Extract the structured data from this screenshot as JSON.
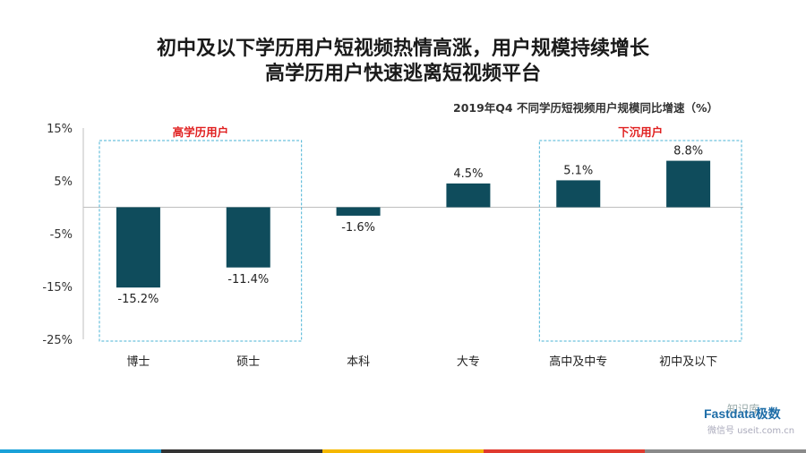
{
  "header": {
    "title_line1": "初中及以下学历用户短视频热情高涨，用户规模持续增长",
    "title_line2": "高学历用户快速逃离短视频平台",
    "subtitle": "2019年Q4 不同学历短视频用户规模同比增速（%）"
  },
  "groups": {
    "high": "高学历用户",
    "low": "下沉用户"
  },
  "brand": {
    "logo_text": "Fastdata极数",
    "wechat_name": "知识库",
    "wechat_id": "微信号 useit.com.cn"
  },
  "colors": {
    "bar": "#0f4c5c",
    "group_border": "#4ab3d6",
    "group_label": "#e02020"
  },
  "chart_data": {
    "type": "bar",
    "categories": [
      "博士",
      "硕士",
      "本科",
      "大专",
      "高中及中专",
      "初中及以下"
    ],
    "values": [
      -15.2,
      -11.4,
      -1.6,
      4.5,
      5.1,
      8.8
    ],
    "data_labels": [
      "-15.2%",
      "-11.4%",
      "-1.6%",
      "4.5%",
      "5.1%",
      "8.8%"
    ],
    "ylim": [
      -25,
      15
    ],
    "yticks": [
      15,
      5,
      -5,
      -15,
      -25
    ],
    "ytick_labels": [
      "15%",
      "5%",
      "-5%",
      "-15%",
      "-25%"
    ],
    "grid": false
  }
}
